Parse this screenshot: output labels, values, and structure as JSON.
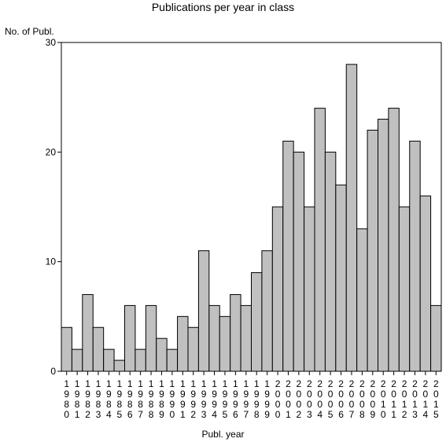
{
  "chart_data": {
    "type": "bar",
    "title": "Publications per year in class",
    "ylabel": "No. of Publ.",
    "xlabel": "Publ. year",
    "categories": [
      "1980",
      "1981",
      "1982",
      "1983",
      "1984",
      "1985",
      "1986",
      "1987",
      "1988",
      "1989",
      "1990",
      "1991",
      "1992",
      "1993",
      "1994",
      "1995",
      "1996",
      "1997",
      "1998",
      "1999",
      "2000",
      "2001",
      "2002",
      "2003",
      "2004",
      "2005",
      "2006",
      "2007",
      "2008",
      "2009",
      "2010",
      "2011",
      "2012",
      "2013",
      "2014",
      "2015"
    ],
    "values": [
      4,
      2,
      7,
      4,
      2,
      1,
      6,
      2,
      6,
      3,
      2,
      5,
      4,
      11,
      6,
      5,
      7,
      6,
      9,
      11,
      15,
      21,
      20,
      15,
      24,
      20,
      17,
      28,
      13,
      22,
      23,
      24,
      15,
      21,
      16,
      6
    ],
    "yticks": [
      0,
      10,
      20,
      30
    ],
    "ylim": [
      0,
      30
    ],
    "grid": false,
    "bar_color": "#c0c0c0",
    "edge_color": "#000000"
  }
}
